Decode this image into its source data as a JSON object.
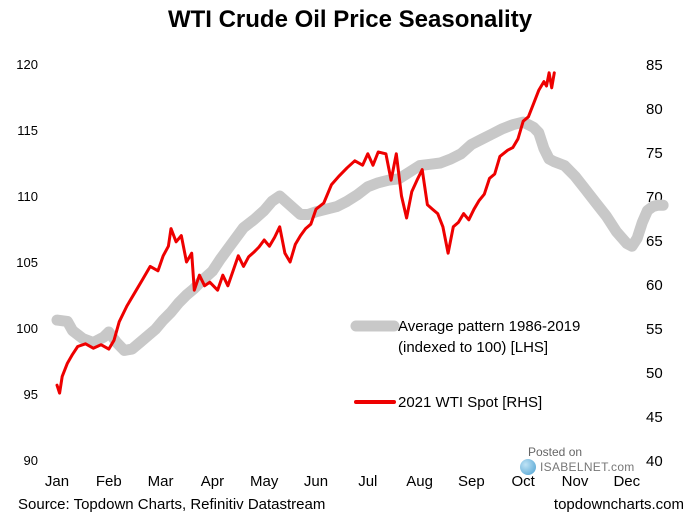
{
  "chart_data": {
    "type": "line",
    "title": "WTI Crude Oil Price Seasonality",
    "x_categories": [
      "Jan",
      "Feb",
      "Mar",
      "Apr",
      "May",
      "Jun",
      "Jul",
      "Aug",
      "Sep",
      "Oct",
      "Nov",
      "Dec"
    ],
    "left_axis": {
      "min": 90,
      "max": 120,
      "ticks": [
        90,
        95,
        100,
        105,
        110,
        115,
        120
      ]
    },
    "right_axis": {
      "min": 40,
      "max": 85,
      "ticks": [
        40,
        45,
        50,
        55,
        60,
        65,
        70,
        75,
        80,
        85
      ]
    },
    "grid": false,
    "legend_position": "right-middle",
    "series": [
      {
        "name": "Average pattern 1986-2019 (indexed to 100) [LHS]",
        "legend_lines": [
          "Average pattern 1986-2019",
          "(indexed to 100) [LHS]"
        ],
        "axis": "left",
        "color": "#c8c8c8",
        "points": [
          [
            0.0,
            100.6
          ],
          [
            0.2,
            100.5
          ],
          [
            0.3,
            99.8
          ],
          [
            0.5,
            99.2
          ],
          [
            0.7,
            98.9
          ],
          [
            0.9,
            99.3
          ],
          [
            1.0,
            99.7
          ],
          [
            1.15,
            98.9
          ],
          [
            1.3,
            98.3
          ],
          [
            1.45,
            98.4
          ],
          [
            1.6,
            98.9
          ],
          [
            1.75,
            99.4
          ],
          [
            1.9,
            99.9
          ],
          [
            2.05,
            100.6
          ],
          [
            2.2,
            101.2
          ],
          [
            2.35,
            101.9
          ],
          [
            2.5,
            102.5
          ],
          [
            2.65,
            103.0
          ],
          [
            2.8,
            103.6
          ],
          [
            3.0,
            104.3
          ],
          [
            3.15,
            105.2
          ],
          [
            3.3,
            106.0
          ],
          [
            3.45,
            106.8
          ],
          [
            3.6,
            107.6
          ],
          [
            3.8,
            108.2
          ],
          [
            4.0,
            108.9
          ],
          [
            4.15,
            109.6
          ],
          [
            4.3,
            110.0
          ],
          [
            4.5,
            109.3
          ],
          [
            4.7,
            108.6
          ],
          [
            4.85,
            108.6
          ],
          [
            5.0,
            108.8
          ],
          [
            5.2,
            109.0
          ],
          [
            5.4,
            109.2
          ],
          [
            5.6,
            109.6
          ],
          [
            5.8,
            110.1
          ],
          [
            6.0,
            110.7
          ],
          [
            6.2,
            111.0
          ],
          [
            6.4,
            111.2
          ],
          [
            6.6,
            111.3
          ],
          [
            6.8,
            111.8
          ],
          [
            7.0,
            112.3
          ],
          [
            7.2,
            112.4
          ],
          [
            7.4,
            112.5
          ],
          [
            7.6,
            112.8
          ],
          [
            7.8,
            113.2
          ],
          [
            8.0,
            113.9
          ],
          [
            8.2,
            114.3
          ],
          [
            8.4,
            114.7
          ],
          [
            8.6,
            115.1
          ],
          [
            8.8,
            115.4
          ],
          [
            9.0,
            115.6
          ],
          [
            9.1,
            115.4
          ],
          [
            9.2,
            115.2
          ],
          [
            9.3,
            114.8
          ],
          [
            9.4,
            113.6
          ],
          [
            9.5,
            112.8
          ],
          [
            9.6,
            112.6
          ],
          [
            9.8,
            112.3
          ],
          [
            10.0,
            111.5
          ],
          [
            10.2,
            110.5
          ],
          [
            10.4,
            109.5
          ],
          [
            10.6,
            108.5
          ],
          [
            10.8,
            107.3
          ],
          [
            11.0,
            106.4
          ],
          [
            11.1,
            106.2
          ],
          [
            11.2,
            106.8
          ],
          [
            11.3,
            108.0
          ],
          [
            11.4,
            108.9
          ],
          [
            11.5,
            109.2
          ],
          [
            11.6,
            109.3
          ],
          [
            11.7,
            109.3
          ]
        ]
      },
      {
        "name": "2021 WTI Spot [RHS]",
        "legend_lines": [
          "2021 WTI Spot [RHS]"
        ],
        "axis": "right",
        "color": "#ee0000",
        "points": [
          [
            0.0,
            48.5
          ],
          [
            0.05,
            47.6
          ],
          [
            0.1,
            49.5
          ],
          [
            0.2,
            51.0
          ],
          [
            0.3,
            52.0
          ],
          [
            0.4,
            52.9
          ],
          [
            0.55,
            53.2
          ],
          [
            0.7,
            52.7
          ],
          [
            0.85,
            53.1
          ],
          [
            1.0,
            52.6
          ],
          [
            1.1,
            53.6
          ],
          [
            1.2,
            55.7
          ],
          [
            1.35,
            57.5
          ],
          [
            1.5,
            59.0
          ],
          [
            1.65,
            60.5
          ],
          [
            1.8,
            62.0
          ],
          [
            1.95,
            61.5
          ],
          [
            2.05,
            63.2
          ],
          [
            2.15,
            64.3
          ],
          [
            2.2,
            66.3
          ],
          [
            2.3,
            64.8
          ],
          [
            2.4,
            65.5
          ],
          [
            2.5,
            62.5
          ],
          [
            2.6,
            63.5
          ],
          [
            2.65,
            59.3
          ],
          [
            2.75,
            61.0
          ],
          [
            2.85,
            59.8
          ],
          [
            2.95,
            60.2
          ],
          [
            3.1,
            59.3
          ],
          [
            3.2,
            61.0
          ],
          [
            3.3,
            59.8
          ],
          [
            3.4,
            61.5
          ],
          [
            3.5,
            63.2
          ],
          [
            3.6,
            62.0
          ],
          [
            3.7,
            63.1
          ],
          [
            3.8,
            63.6
          ],
          [
            3.9,
            64.2
          ],
          [
            4.0,
            65.0
          ],
          [
            4.1,
            64.3
          ],
          [
            4.2,
            65.3
          ],
          [
            4.3,
            66.5
          ],
          [
            4.4,
            63.5
          ],
          [
            4.5,
            62.5
          ],
          [
            4.6,
            64.5
          ],
          [
            4.7,
            65.5
          ],
          [
            4.8,
            66.3
          ],
          [
            4.9,
            66.8
          ],
          [
            5.0,
            68.5
          ],
          [
            5.15,
            69.2
          ],
          [
            5.3,
            71.3
          ],
          [
            5.45,
            72.3
          ],
          [
            5.6,
            73.2
          ],
          [
            5.75,
            74.0
          ],
          [
            5.9,
            73.5
          ],
          [
            6.0,
            74.8
          ],
          [
            6.1,
            73.5
          ],
          [
            6.2,
            75.0
          ],
          [
            6.35,
            74.8
          ],
          [
            6.45,
            71.8
          ],
          [
            6.55,
            74.8
          ],
          [
            6.65,
            70.0
          ],
          [
            6.75,
            67.5
          ],
          [
            6.85,
            70.5
          ],
          [
            6.95,
            71.8
          ],
          [
            7.05,
            73.0
          ],
          [
            7.15,
            69.0
          ],
          [
            7.25,
            68.5
          ],
          [
            7.35,
            68.0
          ],
          [
            7.45,
            66.5
          ],
          [
            7.55,
            63.5
          ],
          [
            7.65,
            66.5
          ],
          [
            7.75,
            67.0
          ],
          [
            7.85,
            68.0
          ],
          [
            7.95,
            67.3
          ],
          [
            8.05,
            68.5
          ],
          [
            8.15,
            69.5
          ],
          [
            8.25,
            70.2
          ],
          [
            8.35,
            72.0
          ],
          [
            8.45,
            72.5
          ],
          [
            8.55,
            74.5
          ],
          [
            8.7,
            75.2
          ],
          [
            8.8,
            75.5
          ],
          [
            8.9,
            76.5
          ],
          [
            9.0,
            78.5
          ],
          [
            9.1,
            79.0
          ],
          [
            9.2,
            80.5
          ],
          [
            9.3,
            82.0
          ],
          [
            9.4,
            83.0
          ],
          [
            9.45,
            82.5
          ],
          [
            9.5,
            84.0
          ],
          [
            9.55,
            82.3
          ],
          [
            9.6,
            84.0
          ]
        ]
      }
    ]
  },
  "footer": {
    "source": "Source: Topdown Charts, Refinitiv Datastream",
    "site": "topdowncharts.com"
  },
  "watermark": {
    "posted": "Posted on",
    "brand": "ISABELNET.com"
  }
}
